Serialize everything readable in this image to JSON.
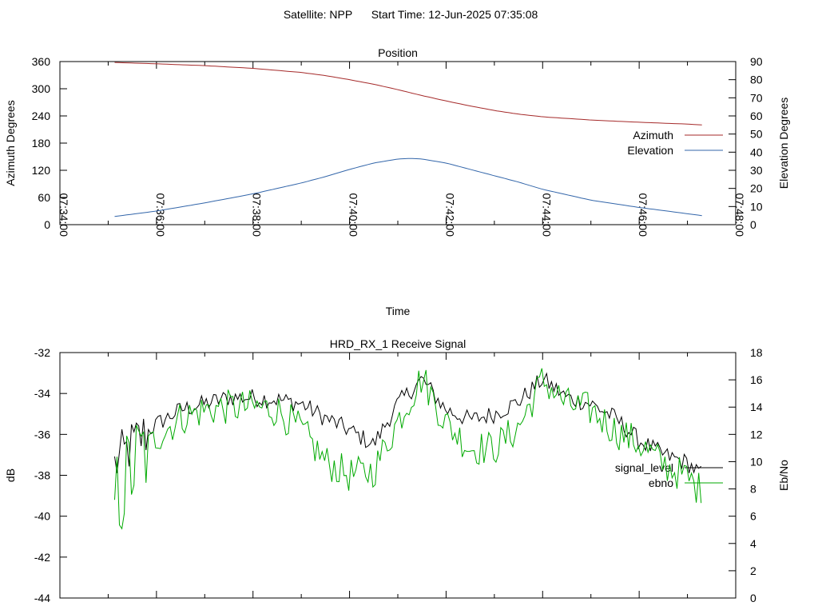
{
  "header": {
    "satellite_label": "Satellite: NPP",
    "start_time_label": "Start Time: 12-Jun-2025 07:35:08"
  },
  "colors": {
    "azimuth": "#a52a2a",
    "elevation": "#3366aa",
    "signal_level": "#000000",
    "ebno": "#00aa00",
    "border": "#000000"
  },
  "chart_data": [
    {
      "type": "line",
      "title": "Position",
      "xlabel": "Time",
      "ylabel": "Azimuth Degrees",
      "y2label": "Elevation Degrees",
      "xlim": [
        "07:34:00",
        "07:48:00"
      ],
      "x_ticks": [
        "07:34:00",
        "07:36:00",
        "07:38:00",
        "07:40:00",
        "07:42:00",
        "07:44:00",
        "07:46:00",
        "07:48:00"
      ],
      "ylim": [
        0,
        360
      ],
      "y_ticks": [
        0,
        60,
        120,
        180,
        240,
        300,
        360
      ],
      "y2lim": [
        0,
        90
      ],
      "y2_ticks": [
        0,
        10,
        20,
        30,
        40,
        50,
        60,
        70,
        80,
        90
      ],
      "legend_position": "right",
      "series": [
        {
          "name": "Azimuth",
          "axis": "y",
          "x": [
            "07:35:08",
            "07:36:00",
            "07:37:00",
            "07:38:00",
            "07:39:00",
            "07:39:30",
            "07:40:00",
            "07:40:30",
            "07:41:00",
            "07:41:30",
            "07:42:00",
            "07:42:30",
            "07:43:00",
            "07:43:30",
            "07:44:00",
            "07:45:00",
            "07:46:00",
            "07:47:00",
            "07:47:18"
          ],
          "values": [
            358,
            355,
            351,
            345,
            336,
            329,
            320,
            310,
            298,
            285,
            273,
            262,
            252,
            244,
            238,
            231,
            226,
            222,
            220
          ]
        },
        {
          "name": "Elevation",
          "axis": "y2",
          "x": [
            "07:35:08",
            "07:36:00",
            "07:37:00",
            "07:38:00",
            "07:39:00",
            "07:39:30",
            "07:40:00",
            "07:40:30",
            "07:41:00",
            "07:41:15",
            "07:41:30",
            "07:42:00",
            "07:42:30",
            "07:43:00",
            "07:43:30",
            "07:44:00",
            "07:45:00",
            "07:46:00",
            "07:47:18"
          ],
          "values": [
            4.5,
            7.5,
            12,
            17,
            23,
            26.5,
            30.5,
            34,
            36.2,
            36.6,
            36.2,
            34,
            30.5,
            27,
            23.5,
            19.5,
            13.5,
            9.5,
            5
          ]
        }
      ]
    },
    {
      "type": "line",
      "title": "HRD_RX_1 Receive Signal",
      "xlabel": "",
      "ylabel": "dB",
      "y2label": "Eb/No",
      "xlim": [
        "07:34:00",
        "07:48:00"
      ],
      "ylim": [
        -44,
        -32
      ],
      "y_ticks": [
        -44,
        -42,
        -40,
        -38,
        -36,
        -34,
        -32
      ],
      "y2lim": [
        0,
        18
      ],
      "y2_ticks": [
        0,
        2,
        4,
        6,
        8,
        10,
        12,
        14,
        16,
        18
      ],
      "legend_position": "right",
      "series": [
        {
          "name": "signal_level",
          "axis": "y",
          "x": [
            "07:35:08",
            "07:35:30",
            "07:36:00",
            "07:36:30",
            "07:37:00",
            "07:37:30",
            "07:38:00",
            "07:38:30",
            "07:39:00",
            "07:39:30",
            "07:40:00",
            "07:40:30",
            "07:41:00",
            "07:41:30",
            "07:42:00",
            "07:42:30",
            "07:43:00",
            "07:43:30",
            "07:44:00",
            "07:44:30",
            "07:45:00",
            "07:45:30",
            "07:46:00",
            "07:46:30",
            "07:47:00",
            "07:47:18"
          ],
          "values": [
            -37.5,
            -36.5,
            -35.5,
            -34.8,
            -34.5,
            -34.2,
            -34.2,
            -34.3,
            -34.5,
            -35.2,
            -35.8,
            -36.5,
            -34.5,
            -33.3,
            -34.8,
            -35.3,
            -35.0,
            -34.4,
            -33.3,
            -34.2,
            -34.5,
            -35.2,
            -36.3,
            -37.0,
            -37.4,
            -38.0
          ]
        },
        {
          "name": "ebno",
          "axis": "y2",
          "x": [
            "07:35:08",
            "07:35:30",
            "07:36:00",
            "07:36:30",
            "07:37:00",
            "07:37:30",
            "07:38:00",
            "07:38:30",
            "07:39:00",
            "07:39:30",
            "07:40:00",
            "07:40:30",
            "07:41:00",
            "07:41:30",
            "07:42:00",
            "07:42:30",
            "07:43:00",
            "07:43:30",
            "07:44:00",
            "07:44:30",
            "07:45:00",
            "07:45:30",
            "07:46:00",
            "07:46:30",
            "07:47:00",
            "07:47:18"
          ],
          "values": [
            7.0,
            9.5,
            11.8,
            13.2,
            13.8,
            14.0,
            14.0,
            13.8,
            12.3,
            10.0,
            9.0,
            9.3,
            13.0,
            16.2,
            12.8,
            11.0,
            11.0,
            12.5,
            16.0,
            14.2,
            13.8,
            12.3,
            11.3,
            9.8,
            8.8,
            7.8
          ]
        }
      ]
    }
  ]
}
